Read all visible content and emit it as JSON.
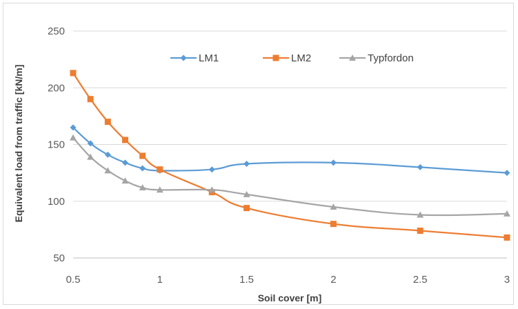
{
  "chart_data": {
    "type": "line",
    "xlabel": "Soil cover [m]",
    "ylabel": "Equivalent load from traffic [kN/m]",
    "xlim": [
      0.5,
      3
    ],
    "ylim": [
      50,
      250
    ],
    "x_ticks": [
      "0.5",
      "1",
      "1.5",
      "2",
      "2.5",
      "3"
    ],
    "y_ticks": [
      "50",
      "100",
      "150",
      "200",
      "250"
    ],
    "grid": "horizontal",
    "legend_position": "top-center",
    "series": [
      {
        "name": "LM1",
        "color": "#5b9bd5",
        "marker": "diamond",
        "x": [
          0.5,
          0.6,
          0.7,
          0.8,
          0.9,
          1.0,
          1.3,
          1.5,
          2.0,
          2.5,
          3.0
        ],
        "y": [
          165,
          151,
          141,
          134,
          129,
          127,
          128,
          133,
          134,
          130,
          125
        ]
      },
      {
        "name": "LM2",
        "color": "#ed7d31",
        "marker": "square",
        "x": [
          0.5,
          0.6,
          0.7,
          0.8,
          0.9,
          1.0,
          1.3,
          1.5,
          2.0,
          2.5,
          3.0
        ],
        "y": [
          213,
          190,
          170,
          154,
          140,
          128,
          108,
          94,
          80,
          74,
          68
        ]
      },
      {
        "name": "Typfordon",
        "color": "#a5a5a5",
        "marker": "triangle",
        "x": [
          0.5,
          0.6,
          0.7,
          0.8,
          0.9,
          1.0,
          1.3,
          1.5,
          2.0,
          2.5,
          3.0
        ],
        "y": [
          156,
          139,
          127,
          118,
          112,
          110,
          110,
          106,
          95,
          88,
          89
        ]
      }
    ]
  }
}
